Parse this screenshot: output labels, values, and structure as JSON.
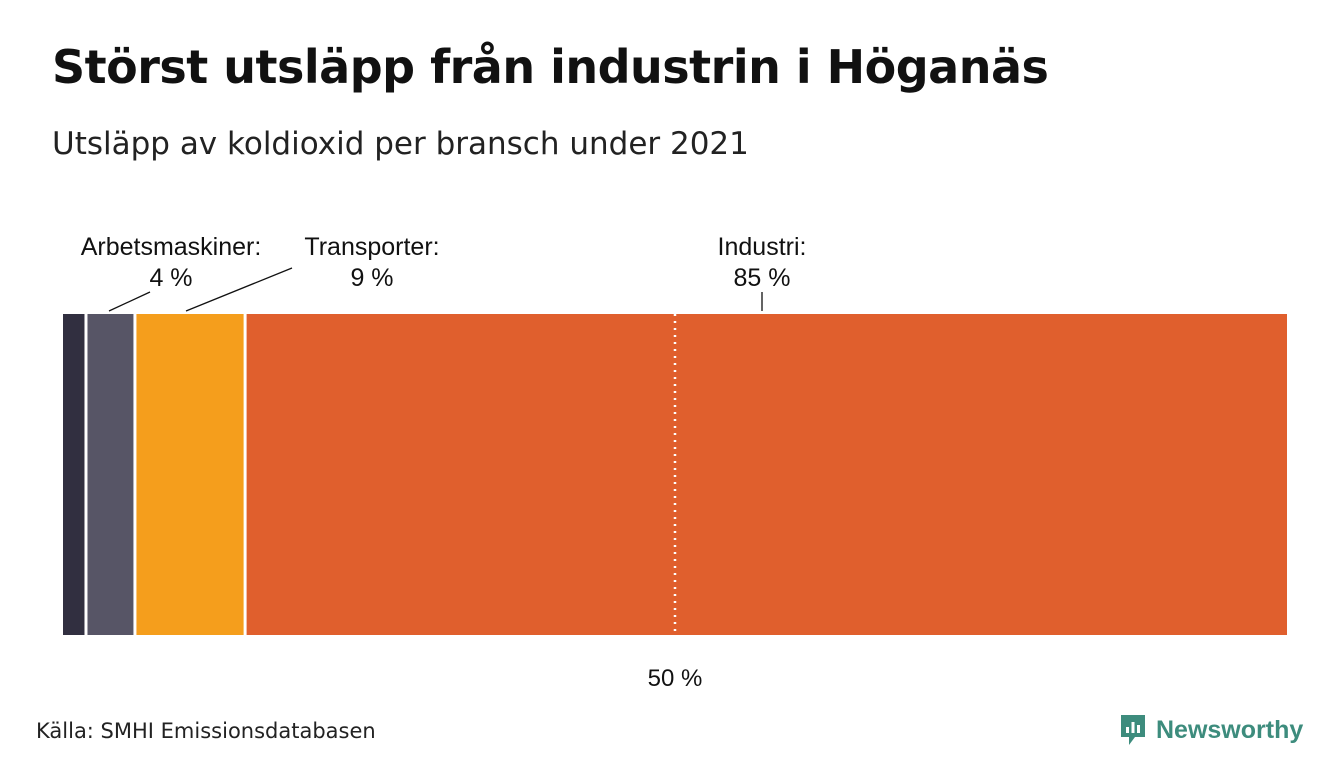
{
  "header": {
    "title": "Störst utsläpp från industrin i Höganäs",
    "subtitle": "Utsläpp av koldioxid per bransch under 2021"
  },
  "footer": {
    "source": "Källa: SMHI Emissionsdatabasen",
    "brand": "Newsworthy"
  },
  "colors": {
    "industri": "#e05f2d",
    "transporter": "#f59e1c",
    "arbetsmaskiner": "#575566",
    "other": "#312f40",
    "brand": "#3d8c7d"
  },
  "chart_data": {
    "type": "bar",
    "orientation": "horizontal-stacked-100",
    "title": "Störst utsläpp från industrin i Höganäs",
    "subtitle": "Utsläpp av koldioxid per bransch under 2021",
    "xlim": [
      0,
      100
    ],
    "reference_line": {
      "value": 50,
      "label": "50 %"
    },
    "series": [
      {
        "key": "other",
        "name": "",
        "value": 2,
        "label": "",
        "value_label": ""
      },
      {
        "key": "arbetsmaskiner",
        "name": "Arbetsmaskiner",
        "value": 4,
        "label": "Arbetsmaskiner:",
        "value_label": "4 %"
      },
      {
        "key": "transporter",
        "name": "Transporter",
        "value": 9,
        "label": "Transporter:",
        "value_label": "9 %"
      },
      {
        "key": "industri",
        "name": "Industri",
        "value": 85,
        "label": "Industri:",
        "value_label": "85 %"
      }
    ]
  }
}
